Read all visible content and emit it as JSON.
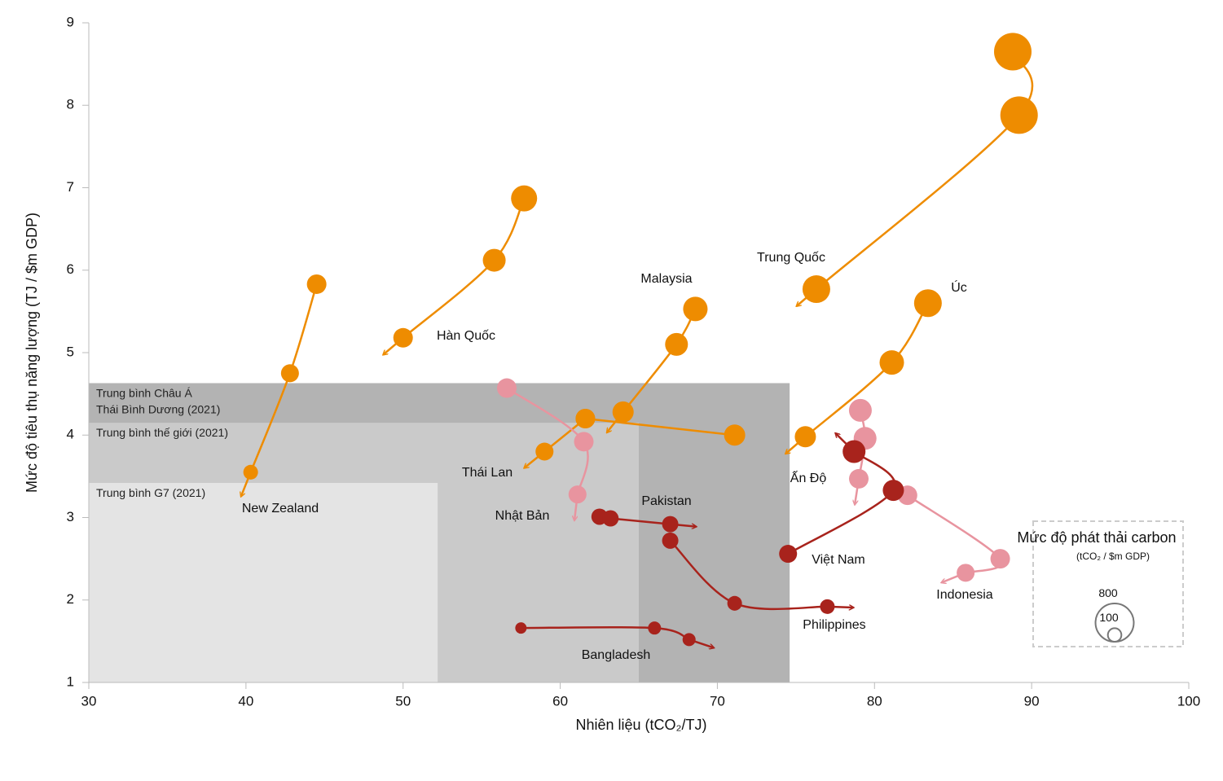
{
  "chart_data": {
    "type": "bubble",
    "x_label": "Nhiên liệu (tCO₂/TJ)",
    "y_label": "Mức độ tiêu thụ năng lượng (TJ / $m GDP)",
    "xlim": [
      30,
      100
    ],
    "xticks": [
      30,
      40,
      50,
      60,
      70,
      80,
      90,
      100
    ],
    "ylim": [
      1,
      9
    ],
    "yticks": [
      1,
      2,
      3,
      4,
      5,
      6,
      7,
      8,
      9
    ],
    "benchmarks": [
      {
        "label": "Trung bình Châu Á\nThái Bình Dương (2021)",
        "x": 74.6,
        "y": 4.63,
        "color": "#b3b3b3"
      },
      {
        "label": "Trung bình thế giới (2021)",
        "x": 65,
        "y": 4.15,
        "color": "#cacaca"
      },
      {
        "label": "Trung bình G7 (2021)",
        "x": 52.2,
        "y": 3.42,
        "color": "#e4e4e4"
      }
    ],
    "series": [
      {
        "name": "New Zealand",
        "color": "#ee8c00",
        "x": [
          44.5,
          42.8,
          40.3
        ],
        "y": [
          5.83,
          4.75,
          3.55
        ],
        "size": [
          209,
          176,
          118
        ]
      },
      {
        "name": "Hàn Quốc",
        "color": "#ee8c00",
        "x": [
          57.7,
          55.8,
          50
        ],
        "y": [
          6.87,
          6.12,
          5.18
        ],
        "size": [
          372,
          285,
          209
        ]
      },
      {
        "name": "Trung Quốc",
        "color": "#ee8c00",
        "x": [
          88.8,
          89.2,
          76.3
        ],
        "y": [
          8.65,
          7.88,
          5.77
        ],
        "size": [
          768,
          768,
          420
        ]
      },
      {
        "name": "Malaysia",
        "color": "#ee8c00",
        "x": [
          68.6,
          67.4,
          64
        ],
        "y": [
          5.53,
          5.1,
          4.28
        ],
        "size": [
          327,
          285,
          245
        ]
      },
      {
        "name": "Thái Lan",
        "color": "#ee8c00",
        "x": [
          61.6,
          59
        ],
        "y": [
          4.2,
          3.8
        ],
        "size": [
          209,
          176
        ]
      },
      {
        "name": "Úc",
        "color": "#ee8c00",
        "x": [
          83.4,
          81.1,
          75.6
        ],
        "y": [
          5.6,
          4.88,
          3.98
        ],
        "size": [
          420,
          327,
          245
        ]
      },
      {
        "name": "Ấn Độ",
        "color": "#ee8c00",
        "x": [
          71.1,
          61.6
        ],
        "y": [
          4.0,
          4.2
        ],
        "size": [
          245,
          209
        ]
      },
      {
        "name": "Nhật Bản",
        "color": "#e8949f",
        "x": [
          56.6,
          61.5,
          61.1
        ],
        "y": [
          4.57,
          3.92,
          3.28
        ],
        "size": [
          209,
          209,
          176
        ]
      },
      {
        "name": null,
        "color": "#e8949f",
        "x": [
          79.1,
          79.4,
          79
        ],
        "y": [
          4.3,
          3.96,
          3.47
        ],
        "size": [
          285,
          285,
          209
        ]
      },
      {
        "name": "Indonesia",
        "color": "#e8949f",
        "x": [
          82.1,
          88,
          85.8
        ],
        "y": [
          3.27,
          2.5,
          2.33
        ],
        "size": [
          209,
          209,
          176
        ]
      },
      {
        "name": "Việt Nam",
        "color": "#a8231c",
        "x": [
          74.5,
          81.2,
          78.7
        ],
        "y": [
          2.56,
          3.33,
          3.8
        ],
        "size": [
          176,
          245,
          285
        ]
      },
      {
        "name": "Pakistan",
        "color": "#a8231c",
        "x": [
          62.5,
          63.2,
          67
        ],
        "y": [
          3.01,
          2.99,
          2.92
        ],
        "size": [
          145,
          145,
          145
        ]
      },
      {
        "name": "Philippines",
        "color": "#a8231c",
        "x": [
          67,
          71.1,
          77
        ],
        "y": [
          2.72,
          1.96,
          1.92
        ],
        "size": [
          145,
          118,
          118
        ]
      },
      {
        "name": "Bangladesh",
        "color": "#a8231c",
        "x": [
          57.5,
          66,
          68.2
        ],
        "y": [
          1.66,
          1.66,
          1.52
        ],
        "size": [
          71,
          93,
          93
        ]
      }
    ],
    "size_legend": {
      "title": "Mức độ phát thải carbon",
      "subtitle": "(tCO₂ / $m GDP)",
      "sizes": [
        800,
        100
      ]
    }
  }
}
